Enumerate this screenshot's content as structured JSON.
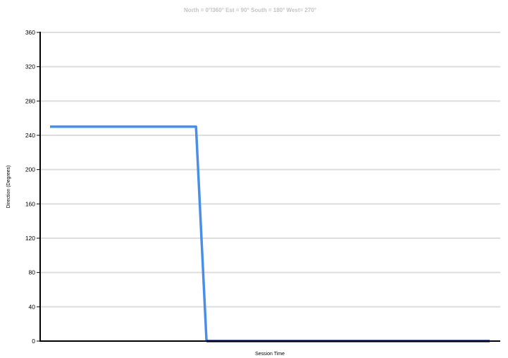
{
  "chart_data": {
    "type": "line",
    "title": "North = 0°/360° Est = 90° South = 180° West= 270°",
    "xlabel": "Session Time",
    "ylabel": "Direction (Degrees)",
    "ylim": [
      0,
      360
    ],
    "yticks": [
      0,
      40,
      80,
      120,
      160,
      200,
      240,
      280,
      320,
      360
    ],
    "xlim": [
      0,
      100
    ],
    "grid": true,
    "series": [
      {
        "color": "#4a8fe7",
        "x": [
          0,
          33.2,
          35.6
        ],
        "y": [
          250,
          250,
          0
        ]
      },
      {
        "color": "#1f3a93",
        "x": [
          35.6,
          100
        ],
        "y": [
          0,
          0
        ]
      }
    ],
    "colors": {
      "grid": "#dddddd",
      "axis": "#000000",
      "title": "#c4c4c4"
    }
  }
}
